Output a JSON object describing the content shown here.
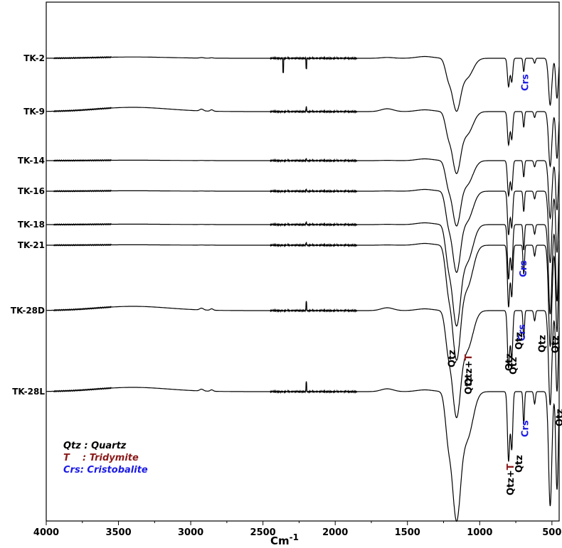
{
  "chart_data": {
    "type": "line",
    "xlabel": "Cm",
    "xlabel_exponent": "-1",
    "xlim": [
      4000,
      450
    ],
    "x_reversed": true,
    "x_ticks": [
      4000,
      3500,
      3000,
      2500,
      2000,
      1500,
      1000,
      500
    ],
    "grid": false,
    "series": [
      {
        "name": "TK-2"
      },
      {
        "name": "TK-9"
      },
      {
        "name": "TK-14"
      },
      {
        "name": "TK-16"
      },
      {
        "name": "TK-18"
      },
      {
        "name": "TK-21"
      },
      {
        "name": "TK-28D"
      },
      {
        "name": "TK-28L"
      }
    ],
    "peak_annotations": [
      {
        "text": "Crs",
        "x": 690,
        "color": "#1a1ae6"
      },
      {
        "text": "Crs",
        "x": 700,
        "color": "#1a1ae6"
      },
      {
        "text": "Crs",
        "x": 710,
        "color": "#1a1ae6"
      },
      {
        "text": "Qtz",
        "x": 1195,
        "color": "#000000"
      },
      {
        "text": "Qtz",
        "x": 1080,
        "color": "#000000"
      },
      {
        "text": "Qtz",
        "x": 800,
        "color": "#000000"
      },
      {
        "text": "Qtz",
        "x": 770,
        "color": "#000000"
      },
      {
        "text": "Qtz",
        "x": 730,
        "color": "#000000"
      },
      {
        "text": "Qtz",
        "x": 570,
        "color": "#000000"
      },
      {
        "text": "Qtz",
        "x": 480,
        "color": "#000000"
      },
      {
        "text": "Qtz+",
        "suffix": "T",
        "x": 1080,
        "color": "#000000",
        "suffix_color": "#8b1a1a"
      },
      {
        "text": "Qtz+",
        "suffix": "T",
        "x": 790,
        "color": "#000000",
        "suffix_color": "#8b1a1a"
      },
      {
        "text": "Qtz",
        "x": 730,
        "color": "#000000"
      },
      {
        "text": "Crs",
        "x": 690,
        "color": "#1a1ae6"
      },
      {
        "text": "Qtz",
        "x": 450,
        "color": "#000000"
      }
    ],
    "legend": [
      {
        "abbr": "Qtz",
        "text": "Qtz : Quartz",
        "color": "#000000"
      },
      {
        "abbr": "T",
        "text": "T    : Tridymite",
        "color": "#8b1a1a"
      },
      {
        "abbr": "Crs",
        "text": "Crs: Cristobalite",
        "color": "#1a1ae6"
      }
    ],
    "legend_position": "bottom-left"
  }
}
